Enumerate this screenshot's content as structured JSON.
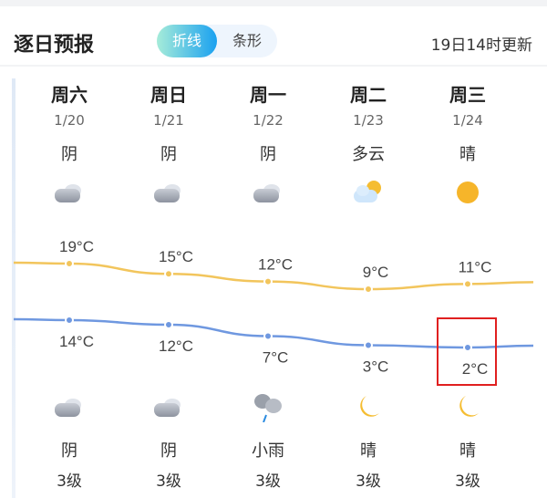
{
  "header": {
    "title": "逐日预报",
    "toggle": [
      "折线",
      "条形"
    ],
    "active_toggle": "折线",
    "updated": "19日14时更新"
  },
  "days": [
    {
      "day": "周六",
      "date": "1/20",
      "day_weather": "阴",
      "day_icon": "cloudy",
      "high": "19°C",
      "low": "14°C",
      "night_icon": "cloudy",
      "night_weather": "阴",
      "wind": "3级"
    },
    {
      "day": "周日",
      "date": "1/21",
      "day_weather": "阴",
      "day_icon": "cloudy",
      "high": "15°C",
      "low": "12°C",
      "night_icon": "cloudy",
      "night_weather": "阴",
      "wind": "3级"
    },
    {
      "day": "周一",
      "date": "1/22",
      "day_weather": "阴",
      "day_icon": "cloudy",
      "high": "12°C",
      "low": "7°C",
      "night_icon": "light-rain",
      "night_weather": "小雨",
      "wind": "3级"
    },
    {
      "day": "周二",
      "date": "1/23",
      "day_weather": "多云",
      "day_icon": "partly-cloudy",
      "high": "9°C",
      "low": "3°C",
      "night_icon": "moon",
      "night_weather": "晴",
      "wind": "3级"
    },
    {
      "day": "周三",
      "date": "1/24",
      "day_weather": "晴",
      "day_icon": "sun",
      "high": "11°C",
      "low": "2°C",
      "night_icon": "moon",
      "night_weather": "晴",
      "wind": "3级"
    }
  ],
  "chart_data": {
    "type": "line",
    "categories": [
      "1/20",
      "1/21",
      "1/22",
      "1/23",
      "1/24"
    ],
    "series": [
      {
        "values": [
          19,
          15,
          12,
          9,
          11
        ],
        "color": "#f2c55c"
      },
      {
        "values": [
          14,
          12,
          7,
          3,
          2
        ],
        "color": "#6f98e0"
      }
    ]
  },
  "highlight": "2°C"
}
